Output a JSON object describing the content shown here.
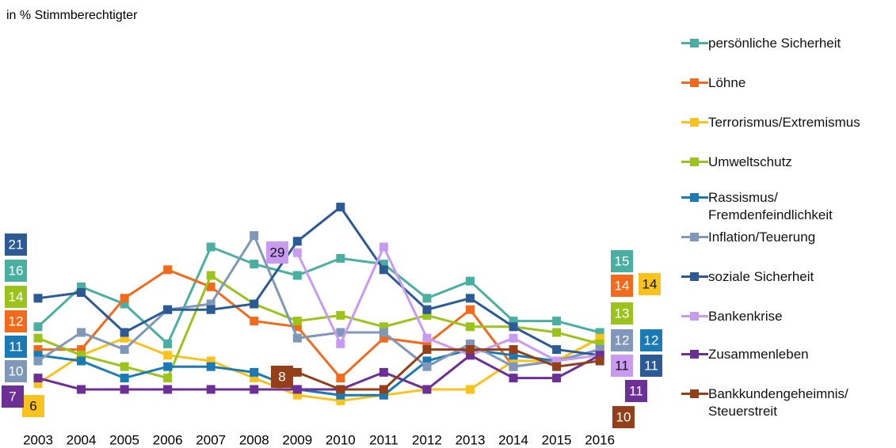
{
  "chart_data": {
    "type": "line",
    "subtitle": "in % Stimmberechtigter",
    "categories": [
      "2003",
      "2004",
      "2005",
      "2006",
      "2007",
      "2008",
      "2009",
      "2010",
      "2011",
      "2012",
      "2013",
      "2014",
      "2015",
      "2016"
    ],
    "series": [
      {
        "name": "persönliche Sicherheit",
        "color": "#4aaea0",
        "values": [
          16,
          23,
          20,
          13,
          30,
          27,
          25,
          28,
          27,
          21,
          24,
          17,
          17,
          15
        ]
      },
      {
        "name": "Löhne",
        "color": "#f26a1b",
        "values": [
          12,
          12,
          21,
          26,
          23,
          17,
          16,
          7,
          14,
          13,
          19,
          9,
          10,
          14
        ]
      },
      {
        "name": "Terrorismus/Extremismus",
        "color": "#f9c31f",
        "values": [
          6,
          11,
          14,
          11,
          10,
          7,
          4,
          3,
          4,
          5,
          5,
          10,
          10,
          14
        ]
      },
      {
        "name": "Umweltschutz",
        "color": "#9cc31c",
        "values": [
          14,
          11,
          9,
          7,
          25,
          20,
          17,
          18,
          16,
          18,
          16,
          16,
          15,
          13
        ]
      },
      {
        "name": "Rassismus/ Fremdenfeindlichkeit",
        "color": "#1a7ab5",
        "values": [
          11,
          10,
          7,
          9,
          9,
          8,
          5,
          4,
          4,
          10,
          12,
          11,
          10,
          12
        ]
      },
      {
        "name": "Inflation/Teuerung",
        "color": "#7f97b8",
        "values": [
          10,
          15,
          12,
          19,
          20,
          32,
          14,
          15,
          15,
          9,
          13,
          9,
          10,
          12
        ]
      },
      {
        "name": "soziale Sicherheit",
        "color": "#2b5a94",
        "values": [
          21,
          22,
          15,
          19,
          19,
          20,
          31,
          37,
          26,
          19,
          21,
          16,
          12,
          11
        ]
      },
      {
        "name": "Bankenkrise",
        "color": "#c89af0",
        "values": [
          null,
          null,
          null,
          null,
          null,
          null,
          29,
          13,
          30,
          14,
          11,
          14,
          10,
          11
        ]
      },
      {
        "name": "Zusammenleben",
        "color": "#6c2f96",
        "values": [
          7,
          5,
          5,
          5,
          5,
          5,
          5,
          5,
          8,
          5,
          11,
          7,
          7,
          11
        ]
      },
      {
        "name": "Bankkundengeheimnis/ Steuerstreit",
        "color": "#93401a",
        "values": [
          null,
          null,
          null,
          null,
          null,
          null,
          8,
          5,
          5,
          12,
          12,
          12,
          9,
          10
        ]
      }
    ]
  }
}
